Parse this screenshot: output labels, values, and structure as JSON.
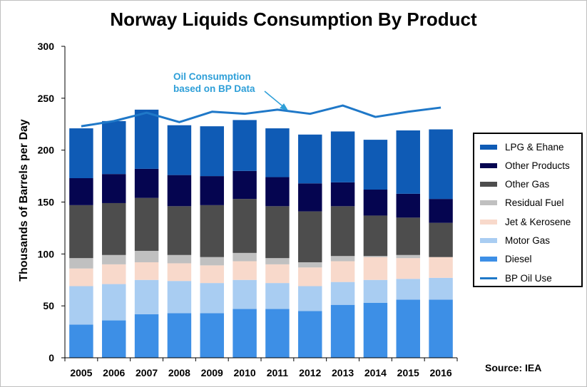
{
  "chart_data": {
    "type": "bar",
    "title": "Norway Liquids Consumption By Product",
    "ylabel": "Thousands of Barrels per Day",
    "xlabel": "",
    "ylim": [
      0,
      300
    ],
    "yticks": [
      0,
      50,
      100,
      150,
      200,
      250,
      300
    ],
    "stacked": true,
    "categories": [
      "2005",
      "2006",
      "2007",
      "2008",
      "2009",
      "2010",
      "2011",
      "2012",
      "2013",
      "2014",
      "2015",
      "2016"
    ],
    "series": [
      {
        "name": "Diesel",
        "color": "#3d8fe6",
        "values": [
          32,
          36,
          42,
          43,
          43,
          47,
          47,
          45,
          51,
          53,
          56,
          56
        ]
      },
      {
        "name": "Motor Gas",
        "color": "#a9cdf2",
        "values": [
          37,
          35,
          33,
          31,
          29,
          28,
          25,
          24,
          22,
          22,
          20,
          21
        ]
      },
      {
        "name": "Jet & Kerosene",
        "color": "#f8d9cb",
        "values": [
          17,
          19,
          17,
          17,
          17,
          18,
          18,
          18,
          20,
          22,
          20,
          20
        ]
      },
      {
        "name": "Residual Fuel",
        "color": "#c0c0c0",
        "values": [
          10,
          9,
          11,
          8,
          8,
          8,
          6,
          5,
          5,
          1,
          3,
          0
        ]
      },
      {
        "name": "Other Gas",
        "color": "#4d4d4d",
        "values": [
          51,
          50,
          51,
          47,
          50,
          52,
          50,
          49,
          48,
          39,
          36,
          33
        ]
      },
      {
        "name": "Other Products",
        "color": "#050550",
        "values": [
          26,
          28,
          28,
          30,
          28,
          27,
          28,
          27,
          23,
          25,
          23,
          23
        ]
      },
      {
        "name": "LPG & Ehane",
        "color": "#0f5bb5",
        "values": [
          48,
          51,
          57,
          48,
          48,
          49,
          47,
          47,
          49,
          48,
          61,
          67
        ]
      }
    ],
    "line_series": {
      "name": "BP Oil Use",
      "color": "#1f78c8",
      "values": [
        223,
        228,
        236,
        227,
        237,
        235,
        239,
        235,
        243,
        232,
        237,
        241
      ]
    },
    "annotation": {
      "text_lines": [
        "Oil Consumption",
        "based on BP Data"
      ],
      "color": "#2e9fd8"
    },
    "legend_position": "right",
    "legend_order": [
      "LPG & Ehane",
      "Other Products",
      "Other Gas",
      "Residual Fuel",
      "Jet & Kerosene",
      "Motor Gas",
      "Diesel",
      "BP Oil Use"
    ],
    "grid": false,
    "source": "Source: IEA"
  }
}
